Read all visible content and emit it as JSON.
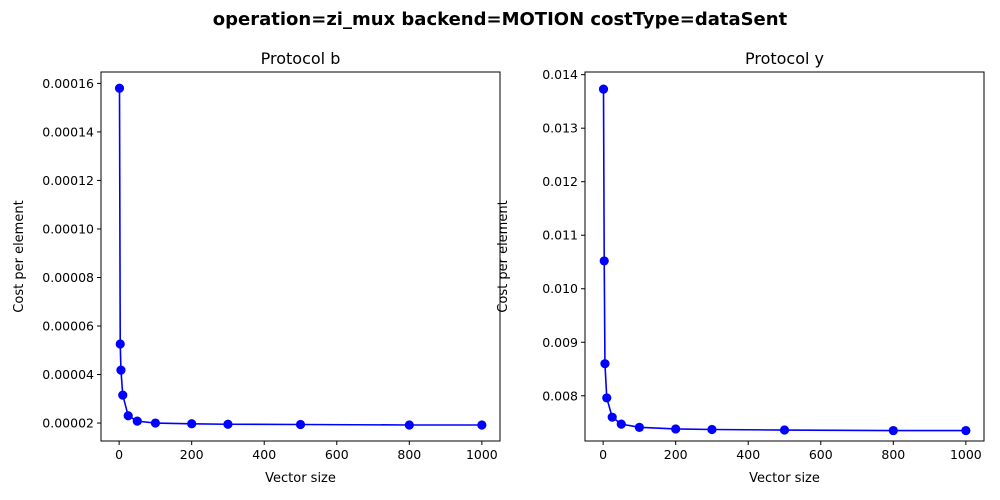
{
  "title": "operation=zi_mux backend=MOTION costType=dataSent",
  "chart_data": [
    {
      "type": "line",
      "title": "Protocol b",
      "xlabel": "Vector size",
      "ylabel": "Cost per element",
      "xlim": [
        -50,
        1050
      ],
      "ylim": [
        1.26e-05,
        0.0001647
      ],
      "xticks": [
        0,
        200,
        400,
        600,
        800,
        1000
      ],
      "xtick_labels": [
        "0",
        "200",
        "400",
        "600",
        "800",
        "1000"
      ],
      "yticks": [
        2e-05,
        4e-05,
        6e-05,
        8e-05,
        0.0001,
        0.00012,
        0.00014,
        0.00016
      ],
      "ytick_labels": [
        "0.00002",
        "0.00004",
        "0.00006",
        "0.00008",
        "0.00010",
        "0.00012",
        "0.00014",
        "0.00016"
      ],
      "color": "#0000ff",
      "series": [
        {
          "name": "Protocol b",
          "x": [
            1,
            3,
            5,
            10,
            25,
            50,
            100,
            200,
            300,
            500,
            800,
            1000
          ],
          "y": [
            0.000158,
            5.26e-05,
            4.18e-05,
            3.15e-05,
            2.3e-05,
            2.08e-05,
            2e-05,
            1.97e-05,
            1.95e-05,
            1.94e-05,
            1.92e-05,
            1.92e-05
          ]
        }
      ]
    },
    {
      "type": "line",
      "title": "Protocol y",
      "xlabel": "Vector size",
      "ylabel": "Cost per element",
      "xlim": [
        -50,
        1050
      ],
      "ylim": [
        0.007155,
        0.01405
      ],
      "xticks": [
        0,
        200,
        400,
        600,
        800,
        1000
      ],
      "xtick_labels": [
        "0",
        "200",
        "400",
        "600",
        "800",
        "1000"
      ],
      "yticks": [
        0.008,
        0.009,
        0.01,
        0.011,
        0.012,
        0.013,
        0.014
      ],
      "ytick_labels": [
        "0.008",
        "0.009",
        "0.010",
        "0.011",
        "0.012",
        "0.013",
        "0.014"
      ],
      "color": "#0000ff",
      "series": [
        {
          "name": "Protocol y",
          "x": [
            1,
            3,
            5,
            10,
            25,
            50,
            100,
            200,
            300,
            500,
            800,
            1000
          ],
          "y": [
            0.01373,
            0.01052,
            0.0086,
            0.00796,
            0.0076,
            0.00747,
            0.00741,
            0.00738,
            0.00737,
            0.00736,
            0.00735,
            0.00735
          ]
        }
      ]
    }
  ]
}
